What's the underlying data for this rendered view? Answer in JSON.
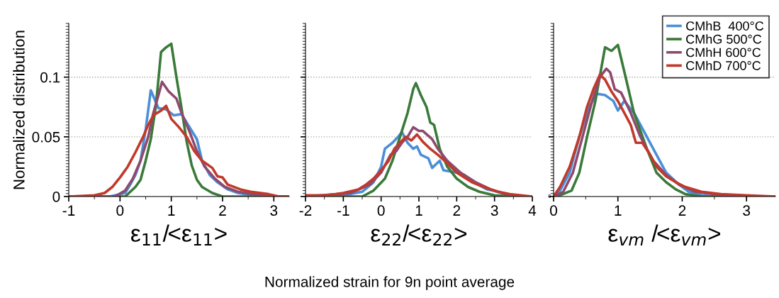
{
  "chart_data": [
    {
      "type": "line",
      "ylabel": "Normalized distribution",
      "xlabel": "ε$_{11}$/<ε$_{11}$>",
      "xlim": [
        -1,
        3.3
      ],
      "xticks": [
        {
          "value": -1,
          "label": "-1"
        },
        0,
        1,
        2,
        3
      ],
      "ylim": [
        0,
        0.145
      ],
      "yticks": [
        0,
        0.05,
        0.1
      ],
      "grid": "y",
      "legend": false,
      "line_style": "solid",
      "marker": "none",
      "series": [
        {
          "color": "#4a8fd8",
          "x": [
            -1,
            -0.2,
            0.1,
            0.2,
            0.3,
            0.4,
            0.5,
            0.6,
            0.75,
            0.9,
            1.05,
            1.2,
            1.3,
            1.4,
            1.5,
            1.6,
            1.75,
            1.9,
            2.1,
            2.3,
            2.6,
            3.0,
            3.3
          ],
          "values": [
            0,
            0,
            0.003,
            0.01,
            0.018,
            0.03,
            0.056,
            0.089,
            0.074,
            0.073,
            0.068,
            0.069,
            0.062,
            0.055,
            0.048,
            0.03,
            0.018,
            0.012,
            0.006,
            0.003,
            0.001,
            0,
            0
          ]
        },
        {
          "color": "#3a7a3a",
          "x": [
            -1,
            0.1,
            0.3,
            0.4,
            0.5,
            0.6,
            0.7,
            0.8,
            0.9,
            1.0,
            1.1,
            1.2,
            1.3,
            1.4,
            1.5,
            1.6,
            1.8,
            2.0,
            3.3
          ],
          "values": [
            0,
            0,
            0.008,
            0.014,
            0.03,
            0.048,
            0.076,
            0.121,
            0.125,
            0.128,
            0.1,
            0.074,
            0.046,
            0.026,
            0.014,
            0.008,
            0.003,
            0,
            0
          ]
        },
        {
          "color": "#8e4a6e",
          "x": [
            -1,
            -0.1,
            0.1,
            0.25,
            0.4,
            0.55,
            0.65,
            0.75,
            0.82,
            0.95,
            1.1,
            1.2,
            1.35,
            1.5,
            1.65,
            1.85,
            2.05,
            2.3,
            2.6,
            3.0,
            3.3
          ],
          "values": [
            0,
            0,
            0.005,
            0.015,
            0.03,
            0.05,
            0.07,
            0.085,
            0.096,
            0.088,
            0.082,
            0.07,
            0.055,
            0.038,
            0.025,
            0.015,
            0.008,
            0.004,
            0.002,
            0,
            0
          ]
        },
        {
          "color": "#c0392b",
          "x": [
            -1,
            -0.5,
            -0.3,
            -0.15,
            0,
            0.15,
            0.3,
            0.45,
            0.55,
            0.65,
            0.8,
            0.9,
            1.0,
            1.15,
            1.3,
            1.45,
            1.6,
            1.8,
            1.9,
            2.0,
            2.1,
            2.35,
            2.55,
            2.9,
            3.1,
            3.3
          ],
          "values": [
            0,
            0.001,
            0.003,
            0.008,
            0.016,
            0.025,
            0.037,
            0.05,
            0.06,
            0.068,
            0.072,
            0.076,
            0.065,
            0.058,
            0.05,
            0.038,
            0.03,
            0.024,
            0.017,
            0.016,
            0.01,
            0.006,
            0.004,
            0.002,
            0,
            0
          ]
        }
      ]
    },
    {
      "type": "line",
      "xlabel": "ε$_{22}$/<ε$_{22}$>",
      "xlim": [
        -2,
        4
      ],
      "xticks": [
        -2,
        -1,
        0,
        1,
        2,
        3,
        4
      ],
      "ylim": [
        0,
        0.145
      ],
      "yticks": [
        0,
        0.05,
        0.1
      ],
      "tick_labels": "x",
      "grid": "y",
      "legend": false,
      "line_style": "solid",
      "marker": "none",
      "annotations": [
        "Normalized strain for 9n point average"
      ],
      "series": [
        {
          "color": "#4a8fd8",
          "x": [
            -2,
            -1,
            -0.5,
            -0.2,
            0,
            0.1,
            0.3,
            0.45,
            0.55,
            0.7,
            0.85,
            0.95,
            1.05,
            1.25,
            1.35,
            1.55,
            1.65,
            2.0,
            2.2,
            2.45,
            2.8,
            2.95,
            3.3,
            3.8,
            4
          ],
          "values": [
            0,
            0.001,
            0.004,
            0.012,
            0.025,
            0.04,
            0.045,
            0.05,
            0.054,
            0.045,
            0.04,
            0.042,
            0.035,
            0.032,
            0.024,
            0.03,
            0.022,
            0.02,
            0.018,
            0.012,
            0.006,
            0.005,
            0.002,
            0,
            0
          ]
        },
        {
          "color": "#3a7a3a",
          "x": [
            -2,
            -0.5,
            -0.2,
            0.1,
            0.3,
            0.5,
            0.7,
            0.85,
            0.92,
            1.05,
            1.2,
            1.3,
            1.4,
            1.55,
            1.75,
            2.0,
            2.3,
            2.6,
            3.0,
            3.5,
            4
          ],
          "values": [
            0,
            0,
            0.005,
            0.015,
            0.03,
            0.05,
            0.07,
            0.09,
            0.095,
            0.085,
            0.075,
            0.062,
            0.06,
            0.04,
            0.025,
            0.015,
            0.008,
            0.004,
            0.001,
            0,
            0
          ]
        },
        {
          "color": "#8e4a6e",
          "x": [
            -2,
            -0.8,
            -0.3,
            0,
            0.25,
            0.4,
            0.55,
            0.7,
            0.85,
            1.0,
            1.1,
            1.35,
            1.5,
            1.75,
            2.1,
            2.5,
            2.9,
            3.3,
            3.8,
            4
          ],
          "values": [
            0,
            0.003,
            0.01,
            0.02,
            0.035,
            0.038,
            0.045,
            0.05,
            0.058,
            0.055,
            0.055,
            0.048,
            0.04,
            0.03,
            0.02,
            0.012,
            0.006,
            0.002,
            0,
            0
          ]
        },
        {
          "color": "#c0392b",
          "x": [
            -2,
            -1.5,
            -1.2,
            -1,
            -0.6,
            -0.4,
            -0.2,
            0,
            0.2,
            0.35,
            0.5,
            0.65,
            0.8,
            0.95,
            1.1,
            1.3,
            1.5,
            1.75,
            2.0,
            2.4,
            2.8,
            3.1,
            3.4,
            4
          ],
          "values": [
            0.001,
            0.001,
            0.002,
            0.003,
            0.006,
            0.01,
            0.015,
            0.022,
            0.03,
            0.04,
            0.045,
            0.05,
            0.047,
            0.052,
            0.046,
            0.04,
            0.035,
            0.028,
            0.02,
            0.012,
            0.007,
            0.004,
            0.002,
            0
          ]
        }
      ]
    },
    {
      "type": "line",
      "xlabel": "ε$_{vm}$ /<ε$_{vm}$>",
      "xlim": [
        0,
        3.45
      ],
      "xticks": [
        0,
        1,
        2,
        3
      ],
      "ylim": [
        0,
        0.145
      ],
      "yticks": [
        0,
        0.05,
        0.1
      ],
      "tick_labels": "x",
      "annotations": [
        "0"
      ],
      "grid": "y",
      "legend": "top right",
      "line_style": "solid",
      "marker": "none",
      "series": [
        {
          "name": "CMhB  400°C",
          "color": "#4a8fd8",
          "x": [
            0,
            0.1,
            0.25,
            0.4,
            0.55,
            0.68,
            0.8,
            0.93,
            1.0,
            1.1,
            1.25,
            1.4,
            1.6,
            1.75,
            1.95,
            2.1,
            2.3,
            2.5,
            3.45
          ],
          "values": [
            0,
            0.005,
            0.02,
            0.05,
            0.075,
            0.086,
            0.085,
            0.08,
            0.072,
            0.08,
            0.07,
            0.055,
            0.035,
            0.02,
            0.01,
            0.004,
            0.001,
            0,
            0
          ]
        },
        {
          "name": "CMhG 500°C",
          "color": "#3a7a3a",
          "x": [
            0,
            0.05,
            0.28,
            0.4,
            0.52,
            0.65,
            0.8,
            0.9,
            1.0,
            1.12,
            1.25,
            1.45,
            1.6,
            1.75,
            1.9,
            2.05,
            2.3,
            3.45
          ],
          "values": [
            0,
            0,
            0.005,
            0.02,
            0.05,
            0.08,
            0.125,
            0.122,
            0.127,
            0.1,
            0.07,
            0.04,
            0.02,
            0.012,
            0.006,
            0.002,
            0,
            0
          ]
        },
        {
          "name": "CMhH 600°C",
          "color": "#8e4a6e",
          "x": [
            0,
            0.15,
            0.3,
            0.45,
            0.6,
            0.72,
            0.82,
            0.88,
            0.95,
            1.05,
            1.2,
            1.35,
            1.55,
            1.75,
            1.95,
            2.2,
            2.5,
            2.8,
            3.45
          ],
          "values": [
            0,
            0.004,
            0.02,
            0.05,
            0.08,
            0.1,
            0.107,
            0.104,
            0.09,
            0.087,
            0.07,
            0.05,
            0.03,
            0.018,
            0.01,
            0.004,
            0.002,
            0,
            0
          ]
        },
        {
          "name": "CMhD 700°C",
          "color": "#c0392b",
          "x": [
            0,
            0.1,
            0.25,
            0.4,
            0.52,
            0.62,
            0.72,
            0.8,
            0.9,
            1.0,
            1.1,
            1.2,
            1.28,
            1.38,
            1.5,
            1.6,
            1.75,
            1.9,
            2.05,
            2.3,
            2.6,
            3.0,
            3.45
          ],
          "values": [
            0,
            0.008,
            0.025,
            0.05,
            0.075,
            0.09,
            0.102,
            0.098,
            0.088,
            0.08,
            0.07,
            0.06,
            0.045,
            0.045,
            0.035,
            0.025,
            0.017,
            0.012,
            0.008,
            0.004,
            0.002,
            0.001,
            0
          ]
        }
      ]
    }
  ]
}
